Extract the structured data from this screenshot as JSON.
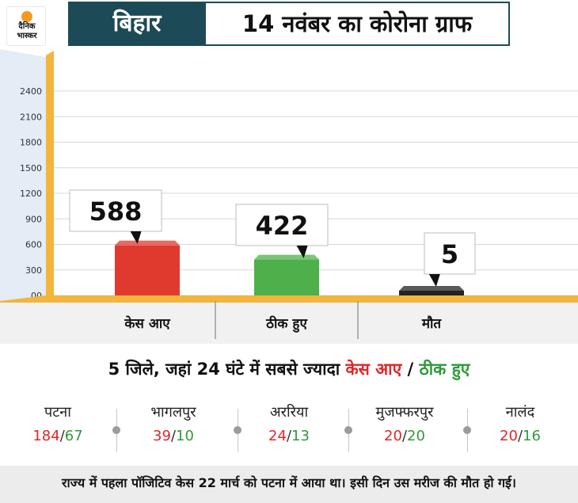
{
  "header": {
    "logo_line1": "दैनिक",
    "logo_line2": "भास्कर",
    "state": "बिहार",
    "title": "14 नवंबर का कोरोना ग्राफ"
  },
  "chart_data": {
    "type": "bar",
    "categories": [
      "केस आए",
      "ठीक हुए",
      "मौत"
    ],
    "values": [
      588,
      422,
      5
    ],
    "value_labels": [
      "588",
      "422",
      "5"
    ],
    "yticks": [
      "00",
      "300",
      "600",
      "900",
      "1200",
      "1500",
      "1800",
      "2100",
      "2400"
    ],
    "ylim": [
      0,
      2400
    ],
    "colors": [
      "#e03a2e",
      "#4db04a",
      "#222222"
    ],
    "grid": true
  },
  "headline": {
    "prefix": "5 जिले, जहां 24 घंटे में सबसे ज्यादा",
    "cases": "केस आए",
    "slash": "/",
    "recovered": "ठीक हुए"
  },
  "districts": [
    {
      "name": "पटना",
      "cases": "184",
      "recovered": "67"
    },
    {
      "name": "भागलपुर",
      "cases": "39",
      "recovered": "10"
    },
    {
      "name": "अररिया",
      "cases": "24",
      "recovered": "13"
    },
    {
      "name": "मुजफ्फरपुर",
      "cases": "20",
      "recovered": "20"
    },
    {
      "name": "नालंद",
      "cases": "20",
      "recovered": "16"
    }
  ],
  "district_sep": "/",
  "footer": {
    "note": "राज्य में पहला पॉजिटिव केस 22 मार्च को पटना में आया था। इसी दिन उस मरीज की मौत हो गई।"
  }
}
